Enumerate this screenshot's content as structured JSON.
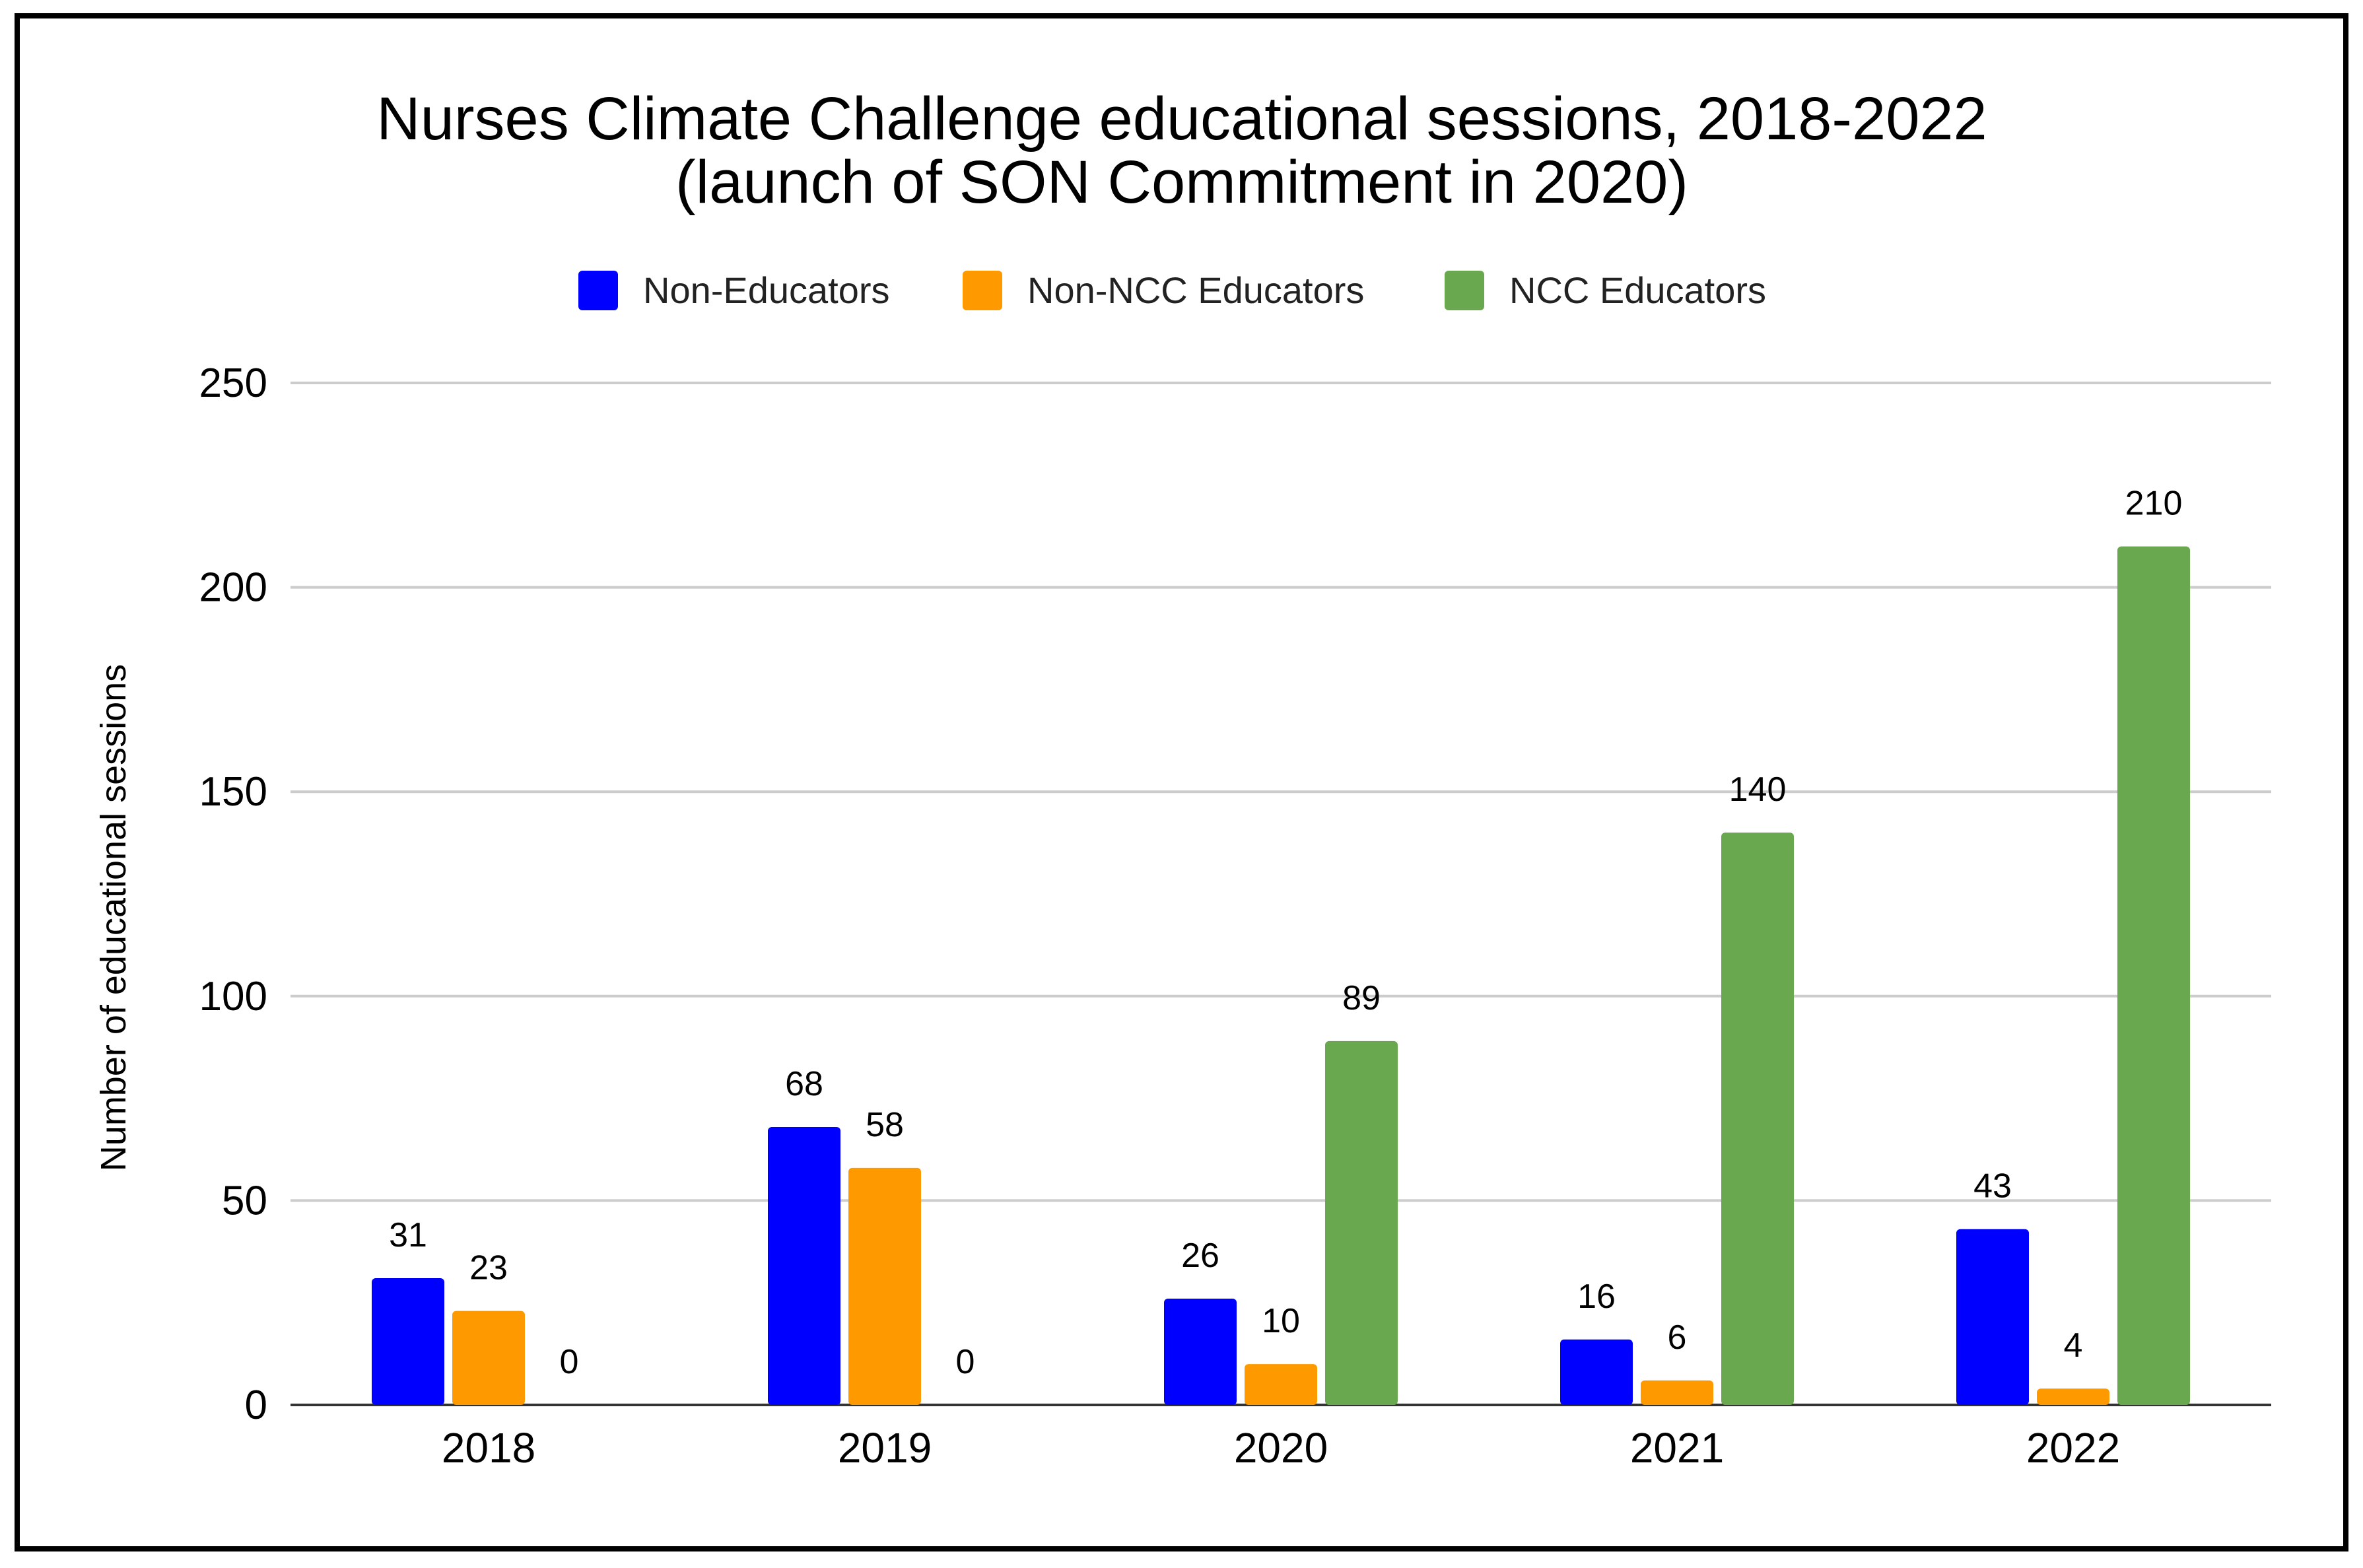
{
  "chart_data": {
    "type": "bar",
    "title": [
      "Nurses Climate Challenge educational sessions, 2018-2022",
      "(launch of SON Commitment in 2020)"
    ],
    "xlabel": "",
    "ylabel": "Number of educational sessions",
    "categories": [
      "2018",
      "2019",
      "2020",
      "2021",
      "2022"
    ],
    "series": [
      {
        "name": "Non-Educators",
        "color": "#0000ff",
        "values": [
          31,
          68,
          26,
          16,
          43
        ]
      },
      {
        "name": "Non-NCC Educators",
        "color": "#ff9900",
        "values": [
          23,
          58,
          10,
          6,
          4
        ]
      },
      {
        "name": "NCC Educators",
        "color": "#6aa84f",
        "values": [
          0,
          0,
          89,
          140,
          210
        ]
      }
    ],
    "ylim": [
      0,
      250
    ],
    "yticks": [
      0,
      50,
      100,
      150,
      200,
      250
    ],
    "grid": true,
    "legend": "top-center",
    "data_labels": true
  }
}
